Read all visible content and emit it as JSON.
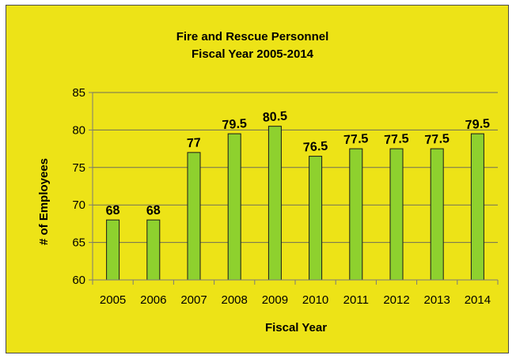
{
  "chart_data": {
    "type": "bar",
    "title": "Fire and Rescue Personnel",
    "subtitle": "Fiscal Year 2005-2014",
    "xlabel": "Fiscal Year",
    "ylabel": "# of Employees",
    "categories": [
      "2005",
      "2006",
      "2007",
      "2008",
      "2009",
      "2010",
      "2011",
      "2012",
      "2013",
      "2014"
    ],
    "values": [
      68,
      68,
      77,
      79.5,
      80.5,
      76.5,
      77.5,
      77.5,
      77.5,
      79.5
    ],
    "data_labels": [
      "68",
      "68",
      "77",
      "79.5",
      "80.5",
      "76.5",
      "77.5",
      "77.5",
      "77.5",
      "79.5"
    ],
    "ylim": [
      60,
      85
    ],
    "yticks": [
      60,
      65,
      70,
      75,
      80,
      85
    ],
    "grid": true,
    "legend": "none",
    "colors": {
      "background": "#ede317",
      "bar_fill": "#8ed12e",
      "bar_stroke": "#1a1a1a",
      "grid": "#6e6e5a",
      "axis": "#7a7a7a"
    }
  }
}
